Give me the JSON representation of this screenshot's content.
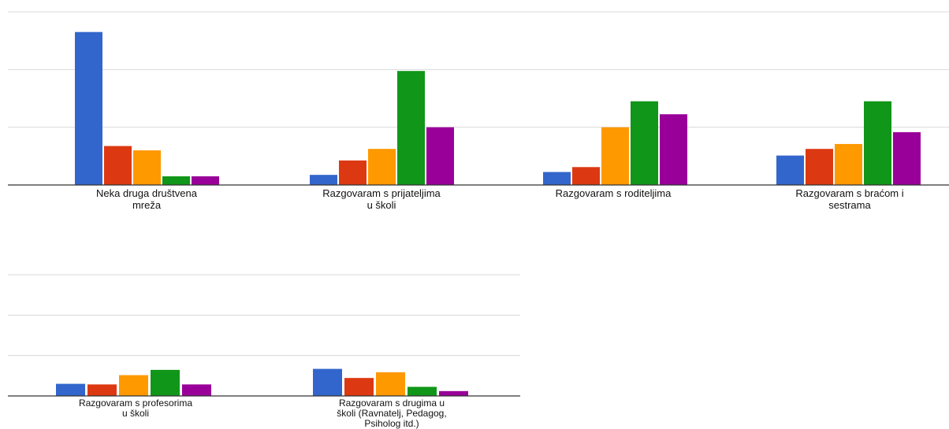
{
  "chart_data": {
    "type": "bar",
    "title": "",
    "xlabel": "",
    "ylabel": "",
    "ylim": [
      0,
      6
    ],
    "grid": true,
    "legend": "none",
    "series_colors": [
      "#3366cc",
      "#dc3912",
      "#ff9900",
      "#109618",
      "#990099"
    ],
    "categories": [
      {
        "label": [
          "Neka druga društvena",
          "mreža"
        ],
        "values": [
          5.3,
          1.35,
          1.2,
          0.3,
          0.3
        ]
      },
      {
        "label": [
          "Razgovaram s prijateljima",
          "u školi"
        ],
        "values": [
          0.35,
          0.85,
          1.25,
          3.95,
          2.0
        ]
      },
      {
        "label": [
          "Razgovaram s roditeljima"
        ],
        "values": [
          0.45,
          0.62,
          2.0,
          2.9,
          2.45
        ]
      },
      {
        "label": [
          "Razgovaram s braćom i",
          "sestrama"
        ],
        "values": [
          1.02,
          1.25,
          1.42,
          2.9,
          1.83
        ]
      },
      {
        "label": [
          "Razgovaram s profesorima",
          "u školi"
        ],
        "values": [
          0.6,
          0.57,
          1.03,
          1.29,
          0.57
        ]
      },
      {
        "label": [
          "Razgovaram s drugima u",
          "školi (Ravnatelj, Pedagog,",
          "Psiholog itd.)"
        ],
        "values": [
          1.34,
          0.89,
          1.17,
          0.45,
          0.24
        ]
      }
    ]
  }
}
